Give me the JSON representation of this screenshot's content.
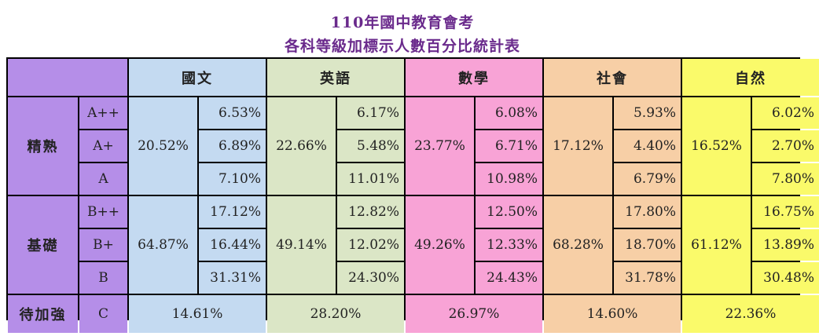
{
  "title": "110年國中教育會考",
  "subtitle": "各科等級加標示人數百分比統計表",
  "colors": {
    "title": "#6a2a8c",
    "label_bg": "#b58ee8",
    "subject_bgs": [
      "#c4daf1",
      "#dbe6c6",
      "#f8a3d6",
      "#f7cfa6",
      "#fafa6a"
    ]
  },
  "subjects": [
    {
      "name": "國文",
      "jingshu": "20.52%",
      "jichu": "64.87%",
      "daijiaqiang": "14.61%",
      "grades": [
        "6.53%",
        "6.89%",
        "7.10%",
        "17.12%",
        "16.44%",
        "31.31%"
      ]
    },
    {
      "name": "英語",
      "jingshu": "22.66%",
      "jichu": "49.14%",
      "daijiaqiang": "28.20%",
      "grades": [
        "6.17%",
        "5.48%",
        "11.01%",
        "12.82%",
        "12.02%",
        "24.30%"
      ]
    },
    {
      "name": "數學",
      "jingshu": "23.77%",
      "jichu": "49.26%",
      "daijiaqiang": "26.97%",
      "grades": [
        "6.08%",
        "6.71%",
        "10.98%",
        "12.50%",
        "12.33%",
        "24.43%"
      ]
    },
    {
      "name": "社會",
      "jingshu": "17.12%",
      "jichu": "68.28%",
      "daijiaqiang": "14.60%",
      "grades": [
        "5.93%",
        "4.40%",
        "6.79%",
        "17.80%",
        "18.70%",
        "31.78%"
      ]
    },
    {
      "name": "自然",
      "jingshu": "16.52%",
      "jichu": "61.12%",
      "daijiaqiang": "22.36%",
      "grades": [
        "6.02%",
        "2.70%",
        "7.80%",
        "16.75%",
        "13.89%",
        "30.48%"
      ]
    }
  ],
  "levels": [
    {
      "label": "精熟",
      "grades": [
        "A++",
        "A+",
        "A"
      ]
    },
    {
      "label": "基礎",
      "grades": [
        "B++",
        "B+",
        "B"
      ]
    },
    {
      "label": "待加強",
      "grades": [
        "C"
      ]
    }
  ]
}
